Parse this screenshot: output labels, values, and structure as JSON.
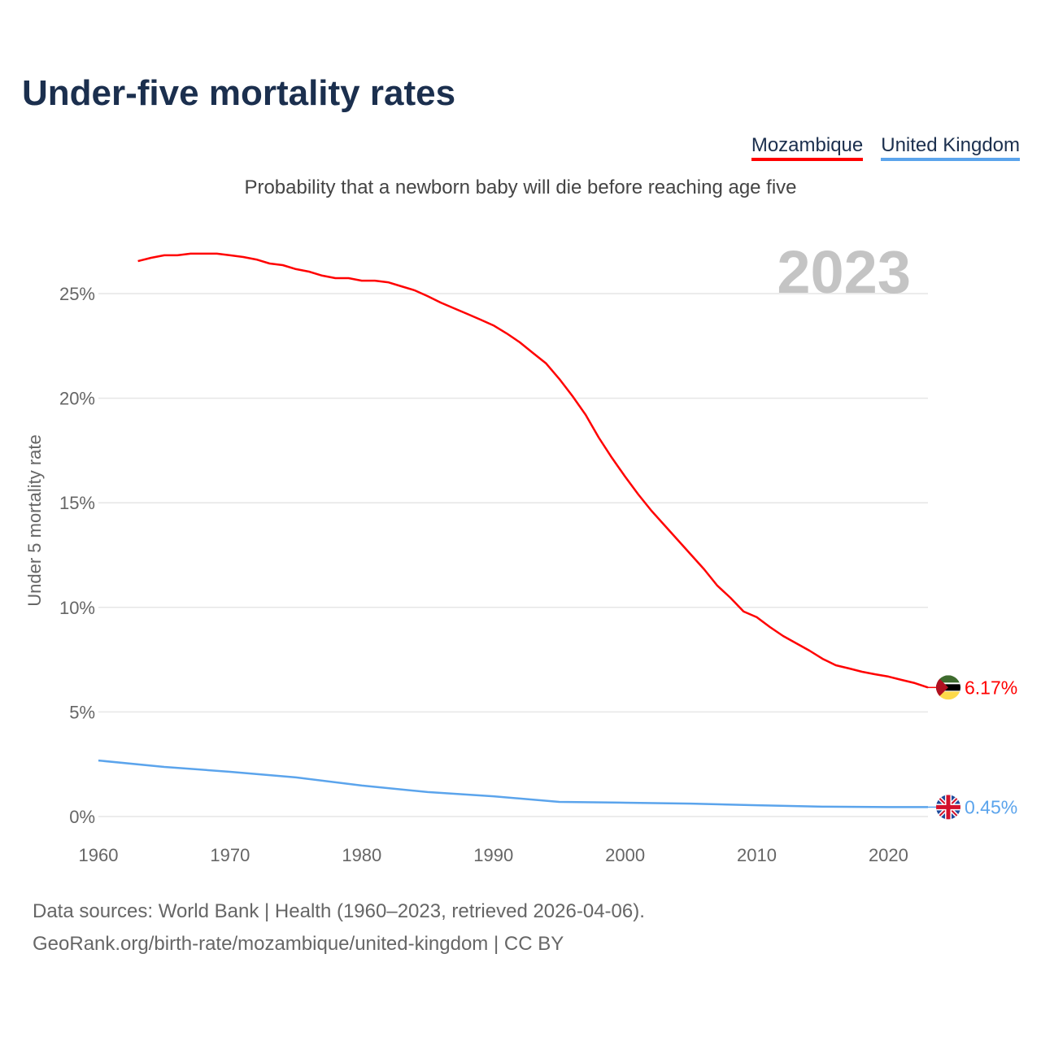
{
  "title": "Under-five mortality rates",
  "subtitle": "Probability that a newborn baby will die before reaching age five",
  "legend": [
    "Mozambique",
    "United Kingdom"
  ],
  "footer": {
    "line1": "Data sources: World Bank | Health (1960–2023, retrieved 2026-04-06).",
    "line2": "GeoRank.org/birth-rate/mozambique/united-kingdom | CC BY"
  },
  "chart_data": {
    "type": "line",
    "title": "Under-five mortality rates",
    "ylabel": "Under 5 mortality rate",
    "xlabel": "",
    "xlim": [
      1960,
      2023
    ],
    "ylim": [
      0,
      27
    ],
    "x_ticks": [
      1960,
      1970,
      1980,
      1990,
      2000,
      2010,
      2020
    ],
    "y_ticks": [
      0,
      5,
      10,
      15,
      20,
      25
    ],
    "y_tick_labels": [
      "0%",
      "5%",
      "10%",
      "15%",
      "20%",
      "25%"
    ],
    "x_tick_labels": [
      "1960",
      "1970",
      "1980",
      "1990",
      "2000",
      "2010",
      "2020"
    ],
    "grid": true,
    "year_annotation": "2023",
    "legend_position": "top-right",
    "series": [
      {
        "name": "Mozambique",
        "color": "#ff0000",
        "end_label": "6.17%",
        "flag": "mozambique-flag",
        "x": [
          1963,
          1964,
          1965,
          1966,
          1967,
          1968,
          1969,
          1970,
          1971,
          1972,
          1973,
          1974,
          1975,
          1976,
          1977,
          1978,
          1979,
          1980,
          1981,
          1982,
          1983,
          1984,
          1985,
          1986,
          1987,
          1988,
          1989,
          1990,
          1991,
          1992,
          1993,
          1994,
          1995,
          1996,
          1997,
          1998,
          1999,
          2000,
          2001,
          2002,
          2003,
          2004,
          2005,
          2006,
          2007,
          2008,
          2009,
          2010,
          2011,
          2012,
          2013,
          2014,
          2015,
          2016,
          2017,
          2018,
          2019,
          2020,
          2021,
          2022,
          2023
        ],
        "values": [
          26.55,
          26.71,
          26.83,
          26.83,
          26.91,
          26.91,
          26.91,
          26.83,
          26.75,
          26.63,
          26.44,
          26.36,
          26.17,
          26.05,
          25.86,
          25.74,
          25.74,
          25.62,
          25.62,
          25.54,
          25.35,
          25.16,
          24.88,
          24.57,
          24.3,
          24.03,
          23.76,
          23.48,
          23.1,
          22.67,
          22.16,
          21.66,
          20.92,
          20.1,
          19.21,
          18.12,
          17.15,
          16.25,
          15.4,
          14.62,
          13.92,
          13.22,
          12.52,
          11.82,
          11.04,
          10.46,
          9.8,
          9.53,
          9.06,
          8.63,
          8.28,
          7.93,
          7.54,
          7.23,
          7.08,
          6.92,
          6.8,
          6.69,
          6.53,
          6.38,
          6.17
        ]
      },
      {
        "name": "United Kingdom",
        "color": "#5ba4ec",
        "end_label": "0.45%",
        "flag": "uk-flag",
        "x": [
          1960,
          1965,
          1970,
          1975,
          1980,
          1985,
          1990,
          1995,
          2000,
          2005,
          2010,
          2015,
          2020,
          2023
        ],
        "values": [
          2.68,
          2.37,
          2.14,
          1.87,
          1.48,
          1.17,
          0.97,
          0.7,
          0.66,
          0.62,
          0.54,
          0.47,
          0.45,
          0.45
        ]
      }
    ]
  }
}
